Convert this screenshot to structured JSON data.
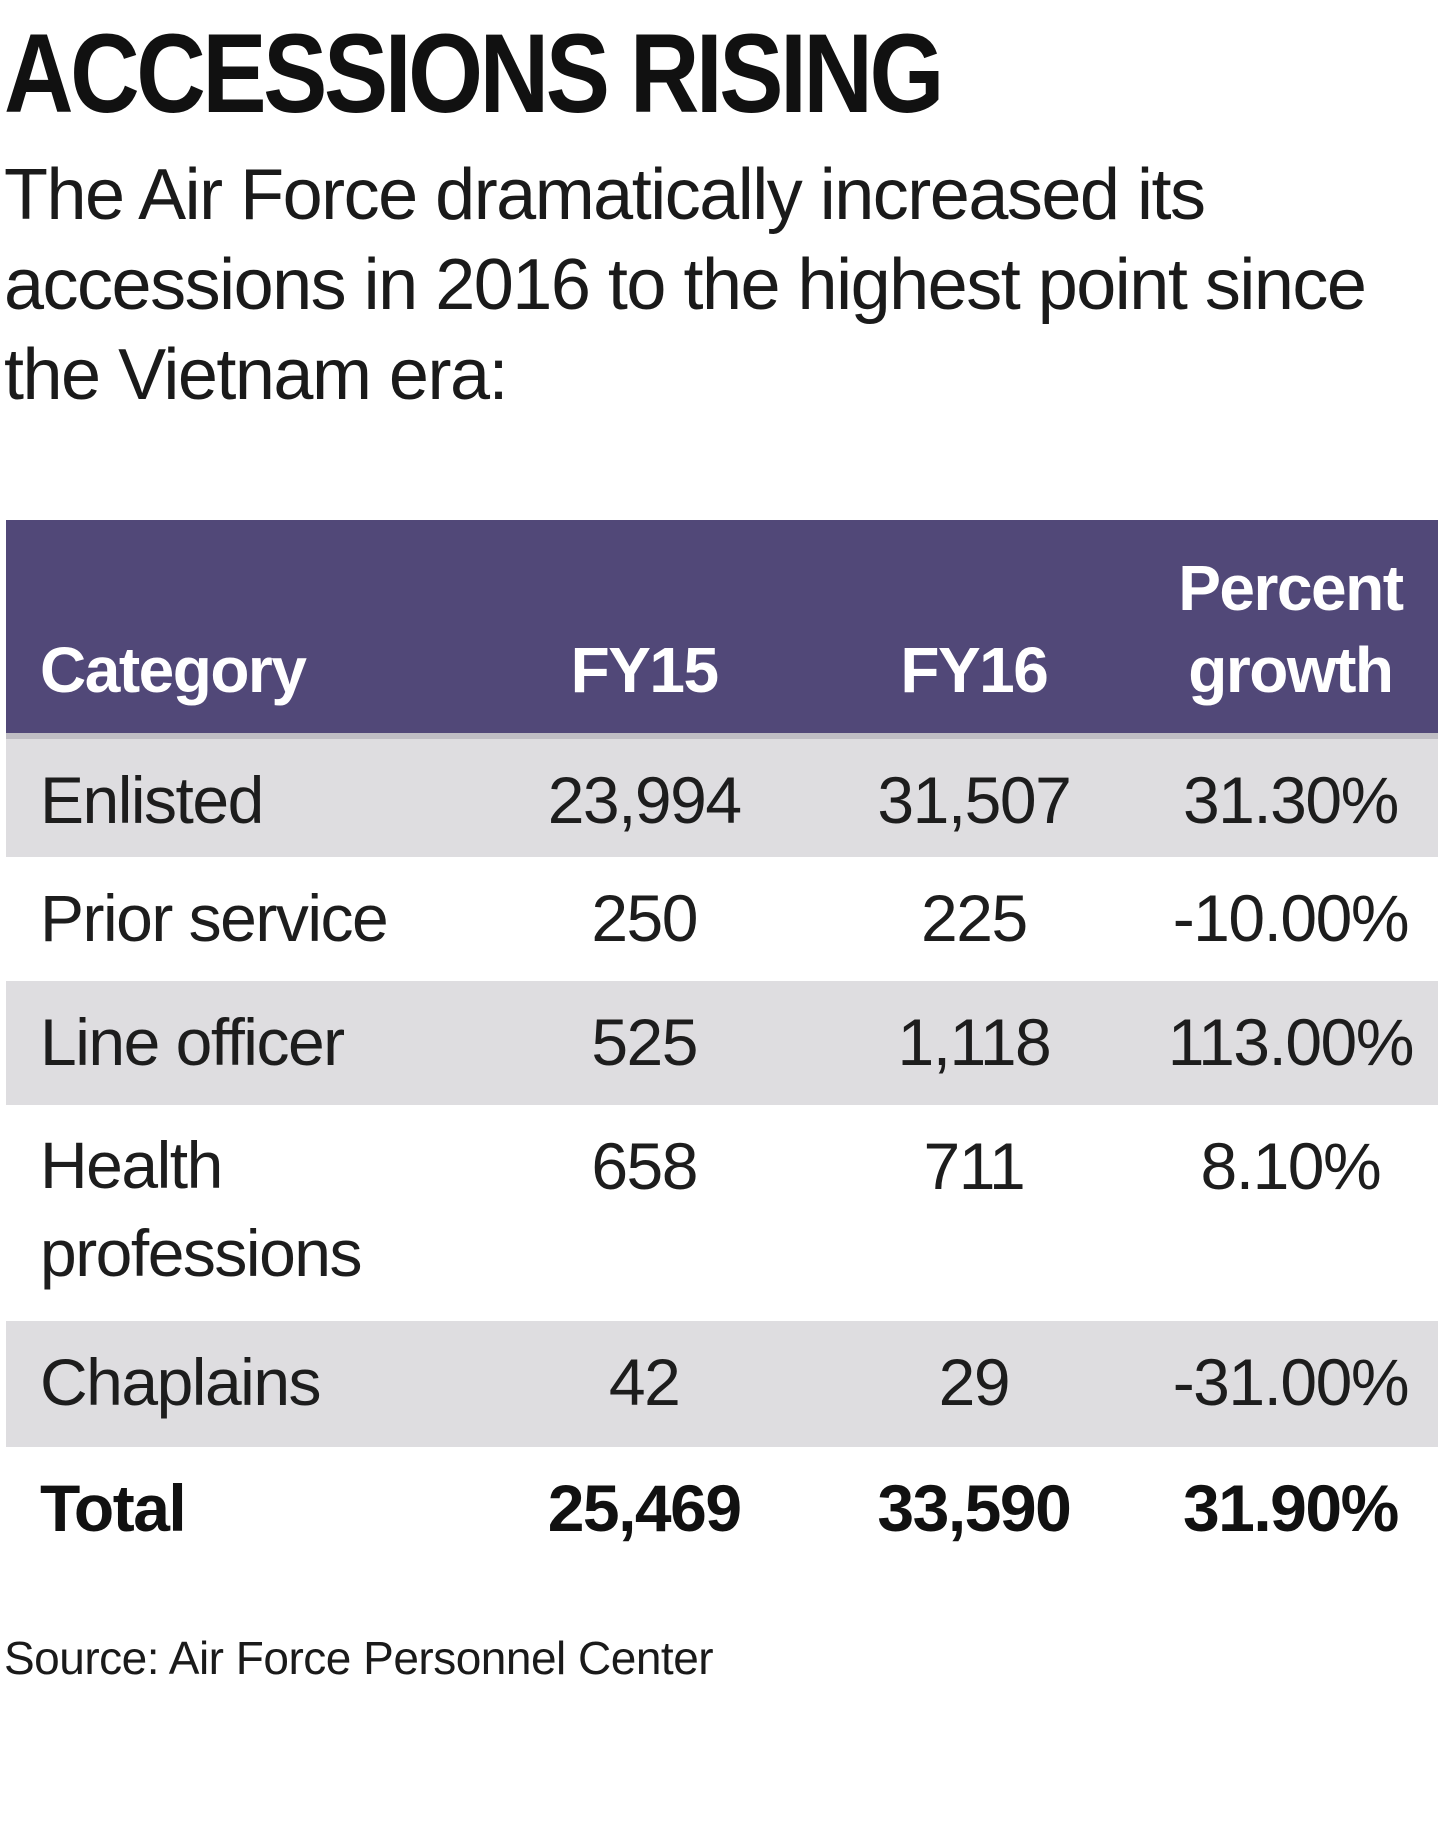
{
  "title": "ACCESSIONS RISING",
  "subtitle": "The Air Force dramatically increased its accessions in 2016 to the highest point since the Vietnam era:",
  "source": "Source: Air Force Personnel Center",
  "colors": {
    "header_bg": "#514878",
    "shaded_row": "#dedde0",
    "header_text": "#ffffff"
  },
  "chart_data": {
    "type": "table",
    "title": "ACCESSIONS RISING",
    "columns": [
      "Category",
      "FY15",
      "FY16",
      "Percent growth"
    ],
    "rows": [
      {
        "category": "Enlisted",
        "fy15": "23,994",
        "fy16": "31,507",
        "growth": "31.30%"
      },
      {
        "category": "Prior service",
        "fy15": "250",
        "fy16": "225",
        "growth": "-10.00%"
      },
      {
        "category": "Line officer",
        "fy15": "525",
        "fy16": "1,118",
        "growth": "113.00%"
      },
      {
        "category": "Health professions",
        "fy15": "658",
        "fy16": "711",
        "growth": "8.10%"
      },
      {
        "category": "Chaplains",
        "fy15": "42",
        "fy16": "29",
        "growth": "-31.00%"
      }
    ],
    "total": {
      "category": "Total",
      "fy15": "25,469",
      "fy16": "33,590",
      "growth": "31.90%"
    }
  }
}
